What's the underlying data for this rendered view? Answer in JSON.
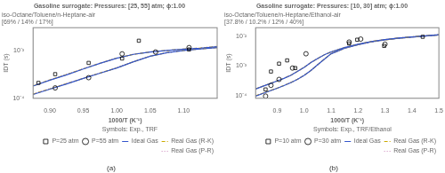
{
  "chart_data": [
    {
      "type": "scatter",
      "title": "Gasoline surrogate: Pressures: [25, 55] atm; ϕ:1.00",
      "subtitle": [
        "iso-Octane/Toluene/n-Heptane-air",
        "[69% / 14% / 17%]"
      ],
      "xlabel": "1000/T (K⁻¹)",
      "ylabel": "IDT (s)",
      "annotation": "(a)",
      "legend_title": "Symbols: Exp., TRF",
      "legend": "lower right",
      "log": "y",
      "grid": false,
      "xlim": [
        0.875,
        1.15
      ],
      "ylim": [
        0.0001,
        0.003
      ],
      "xticks": [
        {
          "value": 0.9,
          "label": "0.90"
        },
        0.95,
        {
          "value": 1.0,
          "label": "1.00"
        },
        1.05,
        {
          "value": 1.1,
          "label": "1.10"
        }
      ],
      "yticks": [
        {
          "value": 0.0001,
          "label": "10⁻⁴"
        },
        {
          "value": 0.001,
          "label": "10⁻³"
        }
      ],
      "series": [
        {
          "name": "P=25 atm",
          "type": "scatter",
          "marker": "square",
          "color": "#000000",
          "x": [
            0.883,
            0.908,
            0.958,
            1.008,
            1.033,
            1.108
          ],
          "values": [
            0.00021,
            0.00032,
            0.00055,
            0.00068,
            0.0016,
            0.00105
          ]
        },
        {
          "name": "P=55 atm",
          "type": "scatter",
          "marker": "circle",
          "color": "#000000",
          "x": [
            0.908,
            0.958,
            1.008,
            1.058,
            1.108
          ],
          "values": [
            0.000165,
            0.00027,
            0.00085,
            0.00093,
            0.00115
          ]
        },
        {
          "name": "Ideal Gas",
          "type": "line",
          "line_style": "solid",
          "color": "#3355cc",
          "x": [
            0.875,
            0.9,
            0.925,
            0.95,
            0.975,
            1.0,
            1.025,
            1.05,
            1.075,
            1.1,
            1.125,
            1.15
          ],
          "values": [
            0.00018,
            0.00024,
            0.00031,
            0.00041,
            0.00054,
            0.00069,
            0.00083,
            0.00093,
            0.001,
            0.00107,
            0.00112,
            0.0012
          ]
        },
        {
          "name": "Real Gas (R-K)",
          "type": "line",
          "line_style": "dashed",
          "color": "#ccaa00",
          "x": [
            0.875,
            0.9,
            0.925,
            0.95,
            0.975,
            1.0,
            1.025,
            1.05,
            1.075,
            1.1,
            1.125,
            1.15
          ],
          "values": [
            0.000182,
            0.000242,
            0.000313,
            0.000412,
            0.000542,
            0.000692,
            0.000832,
            0.000932,
            0.001002,
            0.001072,
            0.001122,
            0.00121
          ]
        },
        {
          "name": "Real Gas (P-R)",
          "type": "line",
          "line_style": "dotted",
          "color": "#cc88bb",
          "x": [
            0.875,
            0.9,
            0.925,
            0.95,
            0.975,
            1.0,
            1.025,
            1.05,
            1.075,
            1.1,
            1.125,
            1.15
          ],
          "values": [
            0.000184,
            0.000244,
            0.000315,
            0.000414,
            0.000544,
            0.000694,
            0.000834,
            0.000934,
            0.001004,
            0.001074,
            0.001124,
            0.00122
          ]
        },
        {
          "type": "line",
          "line_style": "solid",
          "color": "#3355cc",
          "x": [
            0.875,
            0.9,
            0.925,
            0.95,
            0.975,
            1.0,
            1.025,
            1.05,
            1.075,
            1.1,
            1.125,
            1.15
          ],
          "values": [
            0.00012,
            0.000155,
            0.0002,
            0.00026,
            0.000335,
            0.00043,
            0.00058,
            0.00076,
            0.0009,
            0.001,
            0.00108,
            0.00115
          ]
        },
        {
          "type": "line",
          "line_style": "dashed",
          "color": "#ccaa00",
          "x": [
            0.875,
            0.9,
            0.925,
            0.95,
            0.975,
            1.0,
            1.025,
            1.05,
            1.075,
            1.1,
            1.125,
            1.15
          ],
          "values": [
            0.000122,
            0.000157,
            0.000202,
            0.000262,
            0.000337,
            0.000432,
            0.000582,
            0.000762,
            0.000902,
            0.001002,
            0.001082,
            0.001152
          ]
        },
        {
          "type": "line",
          "line_style": "dotted",
          "color": "#cc88bb",
          "x": [
            0.875,
            0.9,
            0.925,
            0.95,
            0.975,
            1.0,
            1.025,
            1.05,
            1.075,
            1.1,
            1.125,
            1.15
          ],
          "values": [
            0.000124,
            0.000159,
            0.000204,
            0.000264,
            0.000339,
            0.000434,
            0.000584,
            0.000764,
            0.000904,
            0.001004,
            0.001084,
            0.001154
          ]
        }
      ]
    },
    {
      "type": "scatter",
      "title": "Gasoline surrogate: Pressures: [10, 30] atm; ϕ:1.00",
      "subtitle": [
        "iso-Octane/Toluene/n-Heptane/Ethanol-air",
        "[37.8% / 10.2% / 12% / 40%]"
      ],
      "xlabel": "1000/T (K⁻¹)",
      "ylabel": "IDT (s)",
      "annotation": "(b)",
      "legend_title": "Symbols: Exp., TRF/Ethanol",
      "legend": "lower right",
      "log": "y",
      "grid": false,
      "xlim": [
        0.82,
        1.5
      ],
      "ylim": [
        8e-05,
        0.02
      ],
      "xticks": [
        0.9,
        {
          "value": 1.0,
          "label": "1.0"
        },
        1.1,
        1.2,
        1.3,
        1.4,
        1.5
      ],
      "yticks": [
        {
          "value": 0.0001,
          "label": "10⁻⁴"
        },
        {
          "value": 0.001,
          "label": "10⁻³"
        },
        {
          "value": 0.01,
          "label": "10⁻²"
        }
      ],
      "series": [
        {
          "name": "P=10 atm",
          "type": "scatter",
          "marker": "square",
          "color": "#000000",
          "x": [
            0.857,
            0.877,
            0.907,
            0.937,
            0.967,
            1.167,
            1.197,
            1.297,
            1.44
          ],
          "values": [
            0.00016,
            0.00065,
            0.0012,
            0.00155,
            0.00085,
            0.0058,
            0.0078,
            0.0048,
            0.0098
          ]
        },
        {
          "name": "P=30 atm",
          "type": "scatter",
          "marker": "circle",
          "color": "#000000",
          "x": [
            0.857,
            0.877,
            0.907,
            0.957,
            1.007,
            1.167,
            1.21,
            1.3
          ],
          "values": [
            9.5e-05,
            0.00022,
            0.00035,
            0.00085,
            0.0026,
            0.0065,
            0.0082,
            0.0055
          ]
        },
        {
          "name": "Ideal Gas",
          "type": "line",
          "line_style": "solid",
          "color": "#3355cc",
          "x": [
            0.82,
            0.85,
            0.875,
            0.9,
            0.925,
            0.95,
            0.975,
            1.0,
            1.025,
            1.05,
            1.075,
            1.1,
            1.15,
            1.2,
            1.25,
            1.3,
            1.35,
            1.4,
            1.45,
            1.5
          ],
          "values": [
            0.000165,
            0.00021,
            0.000255,
            0.00031,
            0.00038,
            0.00048,
            0.00065,
            0.0009,
            0.0013,
            0.0018,
            0.0024,
            0.003,
            0.0042,
            0.0055,
            0.0068,
            0.0079,
            0.0089,
            0.0098,
            0.0106,
            0.0115
          ]
        },
        {
          "name": "Real Gas (R-K)",
          "type": "line",
          "line_style": "dashed",
          "color": "#ccaa00",
          "x": [
            0.82,
            0.85,
            0.875,
            0.9,
            0.925,
            0.95,
            0.975,
            1.0,
            1.025,
            1.05,
            1.075,
            1.1,
            1.15,
            1.2,
            1.25,
            1.3,
            1.35,
            1.4,
            1.45,
            1.5
          ],
          "values": [
            0.000167,
            0.000212,
            0.000257,
            0.000312,
            0.000382,
            0.000482,
            0.000652,
            0.000902,
            0.001302,
            0.001802,
            0.002402,
            0.003002,
            0.004202,
            0.005502,
            0.006802,
            0.007902,
            0.008902,
            0.009802,
            0.01062,
            0.01152
          ]
        },
        {
          "name": "Real Gas (P-R)",
          "type": "line",
          "line_style": "dotted",
          "color": "#cc88bb",
          "x": [
            0.82,
            0.85,
            0.875,
            0.9,
            0.925,
            0.95,
            0.975,
            1.0,
            1.025,
            1.05,
            1.075,
            1.1,
            1.15,
            1.2,
            1.25,
            1.3,
            1.35,
            1.4,
            1.45,
            1.5
          ],
          "values": [
            0.000169,
            0.000214,
            0.000259,
            0.000314,
            0.000384,
            0.000484,
            0.000654,
            0.000904,
            0.001304,
            0.001804,
            0.002404,
            0.003004,
            0.004204,
            0.005504,
            0.006804,
            0.007904,
            0.008904,
            0.009804,
            0.01064,
            0.01154
          ]
        },
        {
          "type": "line",
          "line_style": "solid",
          "color": "#3355cc",
          "x": [
            0.82,
            0.85,
            0.875,
            0.9,
            0.925,
            0.95,
            0.975,
            1.0,
            1.025,
            1.05,
            1.075,
            1.1,
            1.15,
            1.2,
            1.25,
            1.3,
            1.35,
            1.4,
            1.45,
            1.5
          ],
          "values": [
            9.5e-05,
            0.00012,
            0.000145,
            0.000175,
            0.000215,
            0.00027,
            0.00035,
            0.00048,
            0.0007,
            0.0011,
            0.0017,
            0.0026,
            0.004,
            0.0053,
            0.0066,
            0.0077,
            0.0087,
            0.0096,
            0.0104,
            0.0113
          ]
        },
        {
          "type": "line",
          "line_style": "dashed",
          "color": "#ccaa00",
          "x": [
            0.82,
            0.85,
            0.875,
            0.9,
            0.925,
            0.95,
            0.975,
            1.0,
            1.025,
            1.05,
            1.075,
            1.1,
            1.15,
            1.2,
            1.25,
            1.3,
            1.35,
            1.4,
            1.45,
            1.5
          ],
          "values": [
            9.7e-05,
            0.000122,
            0.000147,
            0.000177,
            0.000217,
            0.000272,
            0.000352,
            0.000482,
            0.000702,
            0.001102,
            0.001702,
            0.002602,
            0.004002,
            0.005302,
            0.006602,
            0.007702,
            0.008702,
            0.009602,
            0.01042,
            0.01132
          ]
        },
        {
          "type": "line",
          "line_style": "dotted",
          "color": "#cc88bb",
          "x": [
            0.82,
            0.85,
            0.875,
            0.9,
            0.925,
            0.95,
            0.975,
            1.0,
            1.025,
            1.05,
            1.075,
            1.1,
            1.15,
            1.2,
            1.25,
            1.3,
            1.35,
            1.4,
            1.45,
            1.5
          ],
          "values": [
            9.9e-05,
            0.000124,
            0.000149,
            0.000179,
            0.000219,
            0.000274,
            0.000354,
            0.000484,
            0.000704,
            0.001104,
            0.001704,
            0.002604,
            0.004004,
            0.005304,
            0.006604,
            0.007704,
            0.008704,
            0.009604,
            0.01044,
            0.01134
          ]
        }
      ]
    }
  ]
}
